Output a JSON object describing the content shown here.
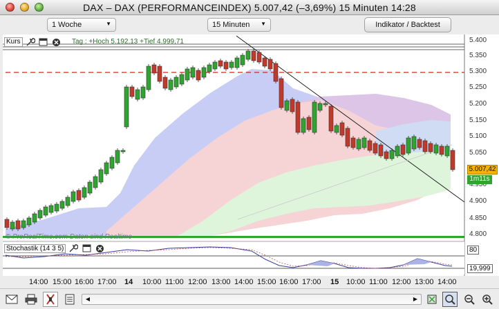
{
  "window": {
    "title": "DAX – DAX (PERFORMANCEINDEX)      5.007,42 (–3,69%)      15 Minuten  14:28"
  },
  "toolbar": {
    "period": "1 Woche",
    "interval": "15 Minuten",
    "indicator_button": "Indikator / Backtest"
  },
  "price_panel": {
    "label": "Kurs",
    "day_info": "Tag : +Hoch 5.192,13 +Tief 4.999,71",
    "watermark": "© ProRealTime.com  Daten sind Realtime",
    "current_price": "5.007,42",
    "timer": "1m11s",
    "price_labels": [
      "5.400",
      "5.350",
      "5.300",
      "5.250",
      "5.200",
      "5.150",
      "5.100",
      "5.050",
      "4.950",
      "4.900",
      "4.850",
      "4.800"
    ]
  },
  "stochastic_panel": {
    "label": "Stochastik (14 3 5)",
    "value_top": "80",
    "value_current": "19,999"
  },
  "time_axis": {
    "labels": [
      {
        "text": "14:00",
        "bold": false
      },
      {
        "text": "15:00",
        "bold": false
      },
      {
        "text": "16:00",
        "bold": false
      },
      {
        "text": "17:00",
        "bold": false
      },
      {
        "text": "14",
        "bold": true
      },
      {
        "text": "10:00",
        "bold": false
      },
      {
        "text": "11:00",
        "bold": false
      },
      {
        "text": "12:00",
        "bold": false
      },
      {
        "text": "13:00",
        "bold": false
      },
      {
        "text": "14:00",
        "bold": false
      },
      {
        "text": "15:00",
        "bold": false
      },
      {
        "text": "16:00",
        "bold": false
      },
      {
        "text": "17:00",
        "bold": false
      },
      {
        "text": "15",
        "bold": true
      },
      {
        "text": "10:00",
        "bold": false
      },
      {
        "text": "11:00",
        "bold": false
      },
      {
        "text": "12:00",
        "bold": false
      },
      {
        "text": "13:00",
        "bold": false
      },
      {
        "text": "14:00",
        "bold": false
      }
    ]
  },
  "colors": {
    "candle_up": "#2fa52f",
    "candle_down": "#c0392b",
    "resistance_line": "#d62020",
    "band_blue": "#c8cdf5",
    "band_red": "#f8d6d6",
    "band_green": "#dcf5dc",
    "band_purple": "#dcc8e8"
  }
}
